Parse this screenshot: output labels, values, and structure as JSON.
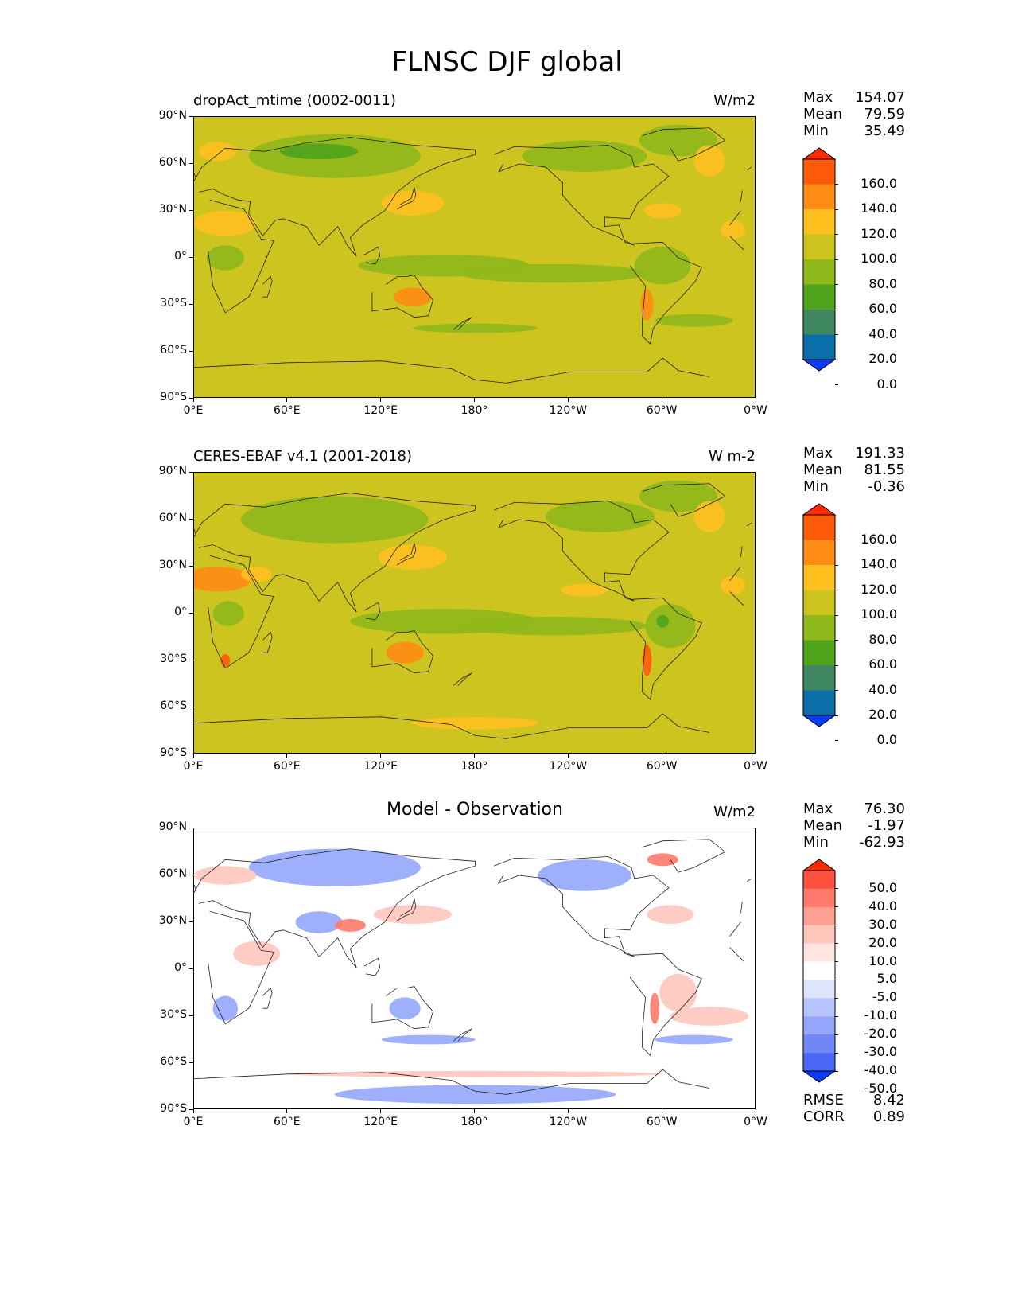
{
  "title": "FLNSC DJF global",
  "lat_labels": [
    "90°N",
    "60°N",
    "30°N",
    "0°",
    "30°S",
    "60°S",
    "90°S"
  ],
  "lon_labels": [
    "0°E",
    "60°E",
    "120°E",
    "180°",
    "120°W",
    "60°W",
    "0°W"
  ],
  "panels": [
    {
      "name": "dropAct_mtime (0002-0011)",
      "units": "W/m2",
      "stats": [
        {
          "label": "Max",
          "value": "154.07"
        },
        {
          "label": "Mean",
          "value": "79.59"
        },
        {
          "label": "Min",
          "value": "35.49"
        }
      ],
      "colorbar_labels": [
        "160.0",
        "140.0",
        "120.0",
        "100.0",
        "80.0",
        "60.0",
        "40.0",
        "20.0",
        "0.0"
      ],
      "colorbar_colors": [
        "#ff2a00",
        "#ff5a0a",
        "#ff8c14",
        "#ffc020",
        "#cdc41f",
        "#8fb81a",
        "#4fa41c",
        "#3e8760",
        "#0a6ea8",
        "#0a3cff"
      ],
      "background_color": "#cdc41f"
    },
    {
      "name": "CERES-EBAF v4.1 (2001-2018)",
      "units": "W m-2",
      "stats": [
        {
          "label": "Max",
          "value": "191.33"
        },
        {
          "label": "Mean",
          "value": "81.55"
        },
        {
          "label": "Min",
          "value": "-0.36"
        }
      ],
      "colorbar_labels": [
        "160.0",
        "140.0",
        "120.0",
        "100.0",
        "80.0",
        "60.0",
        "40.0",
        "20.0",
        "0.0"
      ],
      "colorbar_colors": [
        "#ff2a00",
        "#ff5a0a",
        "#ff8c14",
        "#ffc020",
        "#cdc41f",
        "#8fb81a",
        "#4fa41c",
        "#3e8760",
        "#0a6ea8",
        "#0a3cff"
      ],
      "background_color": "#cdc41f"
    },
    {
      "name": "Model - Observation",
      "units": "W/m2",
      "stats": [
        {
          "label": "Max",
          "value": "76.30"
        },
        {
          "label": "Mean",
          "value": "-1.97"
        },
        {
          "label": "Min",
          "value": "-62.93"
        }
      ],
      "colorbar_labels": [
        "50.0",
        "40.0",
        "30.0",
        "20.0",
        "10.0",
        "5.0",
        "-5.0",
        "-10.0",
        "-20.0",
        "-30.0",
        "-40.0",
        "-50.0"
      ],
      "colorbar_colors": [
        "#ff2a00",
        "#ff5040",
        "#ff7a6a",
        "#ffa192",
        "#ffc6bc",
        "#ffe6e1",
        "#ffffff",
        "#dfe4ff",
        "#b9c5ff",
        "#93a6fb",
        "#6f88f5",
        "#4a68f5",
        "#0a3cff"
      ],
      "background_color": "#ffffff",
      "extra_stats": [
        {
          "label": "RMSE",
          "value": "8.42"
        },
        {
          "label": "CORR",
          "value": "0.89"
        }
      ]
    }
  ]
}
